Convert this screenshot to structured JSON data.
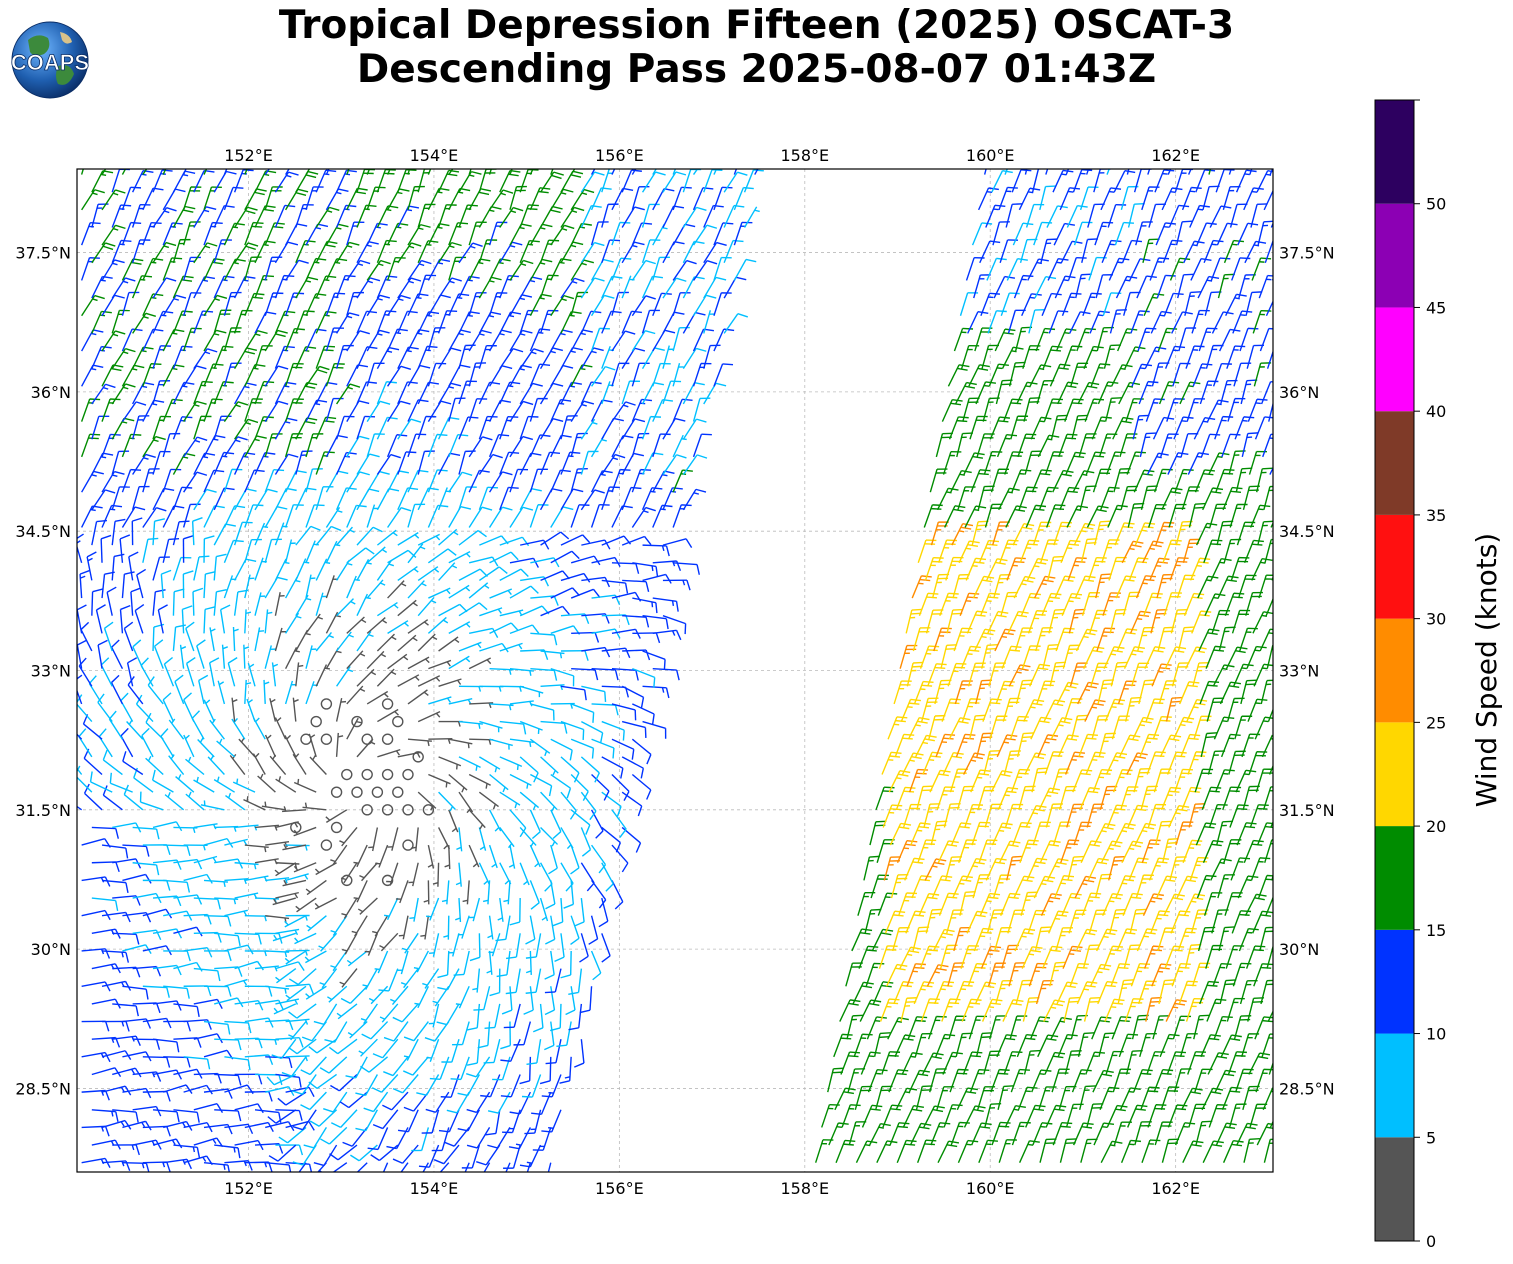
{
  "title": {
    "line1": "Tropical Depression Fifteen (2025) OSCAT-3",
    "line2": "Descending Pass 2025-08-07 01:43Z"
  },
  "logo": {
    "text": "COAPS",
    "icon": "earth-globe-icon"
  },
  "map": {
    "lon_range": [
      150.15,
      163.05
    ],
    "lat_range": [
      27.6,
      38.4
    ],
    "gridlines": true,
    "lon_ticks": [
      {
        "value": 152,
        "label": "152°E"
      },
      {
        "value": 154,
        "label": "154°E"
      },
      {
        "value": 156,
        "label": "156°E"
      },
      {
        "value": 158,
        "label": "158°E"
      },
      {
        "value": 160,
        "label": "160°E"
      },
      {
        "value": 162,
        "label": "162°E"
      }
    ],
    "lat_ticks": [
      {
        "value": 28.5,
        "label": "28.5°N"
      },
      {
        "value": 30,
        "label": "30°N"
      },
      {
        "value": 31.5,
        "label": "31.5°N"
      },
      {
        "value": 33,
        "label": "33°N"
      },
      {
        "value": 34.5,
        "label": "34.5°N"
      },
      {
        "value": 36,
        "label": "36°N"
      },
      {
        "value": 37.5,
        "label": "37.5°N"
      }
    ],
    "wind_barbs": {
      "swath_west": {
        "lon_at_lat_27_6": [
          150.15,
          155.3
        ],
        "lon_at_lat_38_4": [
          150.15,
          157.5
        ]
      },
      "swath_east": {
        "lon_at_lat_27_6": [
          158.05,
          163.05
        ],
        "lon_at_lat_38_4": [
          159.9,
          163.05
        ]
      },
      "calm_region_center": {
        "lon": 153.2,
        "lat": 31.8
      }
    }
  },
  "colorbar": {
    "label": "Wind Speed (knots)",
    "ticks": [
      0,
      5,
      10,
      15,
      20,
      25,
      30,
      35,
      40,
      45,
      50
    ],
    "bins": [
      {
        "from": 0,
        "to": 5,
        "color": "#555555"
      },
      {
        "from": 5,
        "to": 10,
        "color": "#00BFFF"
      },
      {
        "from": 10,
        "to": 15,
        "color": "#0033FF"
      },
      {
        "from": 15,
        "to": 20,
        "color": "#008C00"
      },
      {
        "from": 20,
        "to": 25,
        "color": "#FFD700"
      },
      {
        "from": 25,
        "to": 30,
        "color": "#FF8C00"
      },
      {
        "from": 30,
        "to": 35,
        "color": "#FF1010"
      },
      {
        "from": 35,
        "to": 40,
        "color": "#7F3A28"
      },
      {
        "from": 40,
        "to": 45,
        "color": "#FF00FF"
      },
      {
        "from": 45,
        "to": 50,
        "color": "#8C00B4"
      },
      {
        "from": 50,
        "to": 55,
        "color": "#2D0060"
      }
    ],
    "range": [
      0,
      55
    ]
  }
}
